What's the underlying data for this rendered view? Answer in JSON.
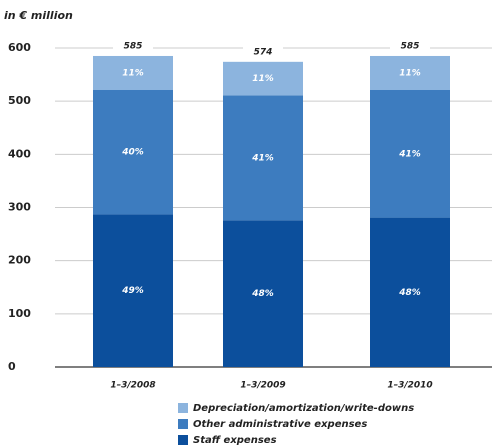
{
  "chart_data": {
    "type": "stacked-bar",
    "y_label": "in € million",
    "categories": [
      "1–3/2008",
      "1–3/2009",
      "1–3/2010"
    ],
    "series": [
      {
        "name": "Depreciation/amortization/write-downs",
        "color": "#8cb4de",
        "values": [
          64,
          63,
          64
        ],
        "segment_labels": [
          "11%",
          "11%",
          "11%"
        ]
      },
      {
        "name": "Other administrative expenses",
        "color": "#3d7cbf",
        "values": [
          234,
          235,
          240
        ],
        "segment_labels": [
          "40%",
          "41%",
          "41%"
        ]
      },
      {
        "name": "Staff expenses",
        "color": "#0c4f9c",
        "values": [
          287,
          276,
          281
        ],
        "segment_labels": [
          "49%",
          "48%",
          "48%"
        ]
      }
    ],
    "totals": [
      585,
      574,
      585
    ],
    "ylim": [
      0,
      600
    ],
    "yticks": [
      0,
      100,
      200,
      300,
      400,
      500,
      600
    ],
    "grid": true
  }
}
